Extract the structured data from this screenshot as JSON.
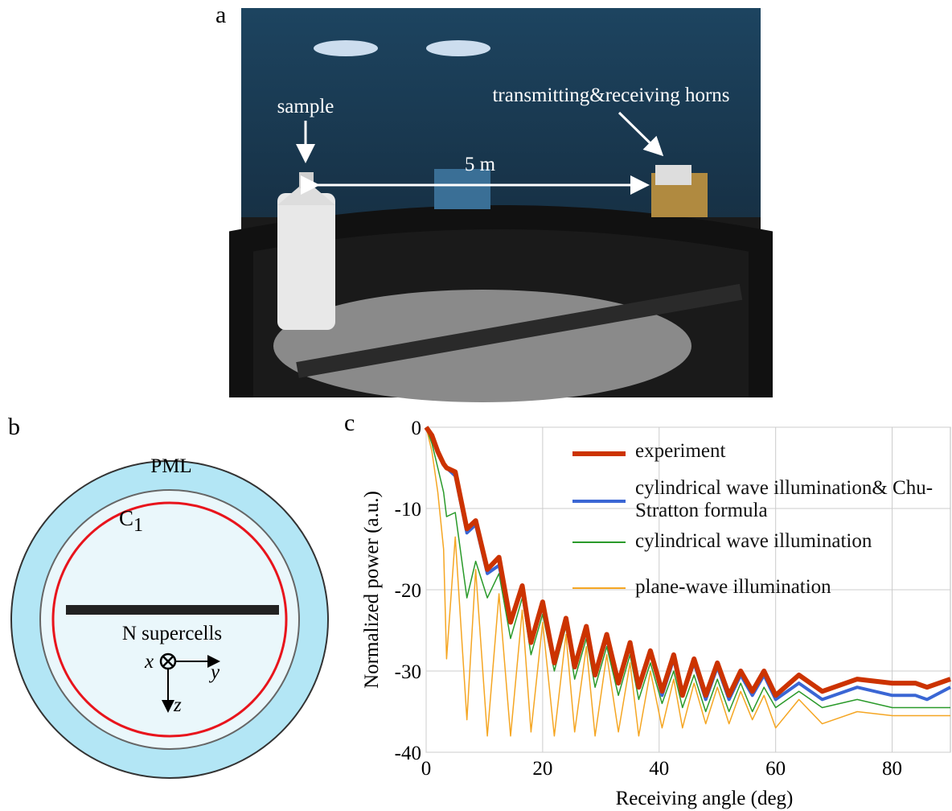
{
  "panels": {
    "a": {
      "label": "a",
      "sample": "sample",
      "horns": "transmitting&receiving horns",
      "distance": "5 m"
    },
    "b": {
      "label": "b",
      "pml": "PML",
      "contour": "C",
      "contour_subscript": "1",
      "array": "N supercells",
      "axis_x": "x",
      "axis_y": "y",
      "axis_z": "z"
    },
    "c": {
      "label": "c"
    }
  },
  "chart_data": {
    "type": "line",
    "xlabel": "Receiving angle (deg)",
    "ylabel": "Normalized power (a.u.)",
    "xlim": [
      0,
      90
    ],
    "ylim": [
      -40,
      0
    ],
    "xticks": [
      0,
      20,
      40,
      60,
      80
    ],
    "yticks": [
      0,
      -10,
      -20,
      -30,
      -40
    ],
    "grid": true,
    "x": [
      0,
      1,
      2,
      3,
      3.5,
      5,
      7,
      8.5,
      10.5,
      12.5,
      14.5,
      16.5,
      18,
      20,
      22,
      24,
      25.5,
      27.5,
      29,
      31,
      33,
      35,
      36.5,
      38.5,
      40.5,
      42.5,
      44,
      46,
      48,
      50,
      52,
      54,
      56,
      58,
      60,
      64,
      68,
      74,
      80,
      84,
      86,
      90
    ],
    "series": [
      {
        "name": "experiment",
        "color": "#cc3300",
        "linewidth": 6,
        "values": [
          0,
          -1,
          -3,
          -4.5,
          -5,
          -5.5,
          -12.5,
          -11.5,
          -17.5,
          -16,
          -24,
          -19.5,
          -26.5,
          -21.5,
          -29,
          -23.5,
          -29.5,
          -24.5,
          -30.5,
          -25.5,
          -31.5,
          -26.5,
          -32,
          -27.5,
          -32.5,
          -28,
          -33,
          -28.5,
          -33,
          -29,
          -33,
          -30,
          -32.5,
          -30,
          -33,
          -30.5,
          -32.5,
          -31,
          -31.5,
          -31.5,
          -32,
          -31
        ]
      },
      {
        "name": "cylindrical wave illumination& Chu-Stratton formula",
        "color": "#3a66d4",
        "linewidth": 4,
        "values": [
          0,
          -1,
          -3,
          -4.5,
          -5,
          -6,
          -13,
          -12,
          -18,
          -17,
          -23.5,
          -20,
          -26.5,
          -22,
          -28.5,
          -24,
          -29.5,
          -25,
          -30.5,
          -26,
          -31.5,
          -27,
          -32,
          -27.5,
          -33,
          -28.5,
          -33,
          -29,
          -33.5,
          -29.5,
          -33.5,
          -30.5,
          -33,
          -30.5,
          -33.5,
          -31.5,
          -33.5,
          -32,
          -33,
          -33,
          -33.5,
          -32
        ]
      },
      {
        "name": "cylindrical wave illumination",
        "color": "#2a9a2a",
        "linewidth": 1.5,
        "values": [
          0,
          -2,
          -5,
          -8,
          -11,
          -10.5,
          -21,
          -16.5,
          -21,
          -18,
          -26,
          -21,
          -28,
          -23,
          -30,
          -24.5,
          -31,
          -26,
          -32,
          -27,
          -33,
          -28,
          -33.5,
          -29,
          -34,
          -30,
          -34.5,
          -30.5,
          -35,
          -31,
          -35,
          -31.5,
          -35,
          -32,
          -34.5,
          -32.5,
          -34.5,
          -33.5,
          -34.5,
          -34.5,
          -34.5,
          -34.5
        ]
      },
      {
        "name": "plane-wave illumination",
        "color": "#f5a623",
        "linewidth": 1.5,
        "values": [
          0,
          -3,
          -8,
          -15,
          -28.5,
          -13.5,
          -36,
          -17.5,
          -38,
          -20.5,
          -38,
          -22.5,
          -37.5,
          -24,
          -38,
          -25.5,
          -37.5,
          -27,
          -38,
          -28,
          -37.5,
          -29,
          -38,
          -30,
          -37,
          -31,
          -37,
          -31.5,
          -36.5,
          -32,
          -36.5,
          -32.5,
          -36,
          -33,
          -37,
          -33.5,
          -36.5,
          -35,
          -35.5,
          -35.5,
          -35.5,
          -35.5
        ]
      }
    ]
  }
}
